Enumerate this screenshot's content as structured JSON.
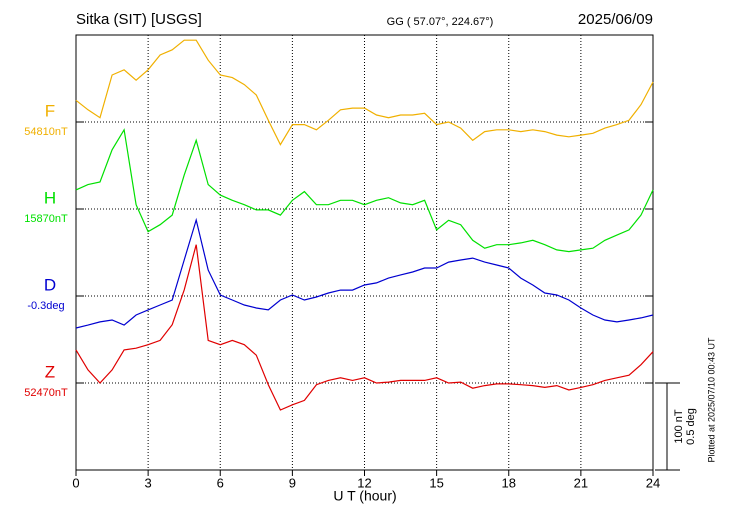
{
  "chart_data": {
    "type": "line",
    "title": "Sitka (SIT)  [USGS]",
    "subtitle": "GG ( 57.07°, 224.67°)",
    "date": "2025/06/09",
    "xlabel": "U T (hour)",
    "note": "Plotted at 2025/07/10 00:43 UT",
    "xlim": [
      0,
      24
    ],
    "xticks": [
      0,
      3,
      6,
      9,
      12,
      15,
      18,
      21,
      24
    ],
    "grid": true,
    "scale_bar": [
      {
        "value": 100,
        "label": "100 nT"
      },
      {
        "value": 0.5,
        "label": "0.5 deg"
      }
    ],
    "x": [
      0,
      0.5,
      1,
      1.5,
      2,
      2.5,
      3,
      3.5,
      4,
      4.5,
      5,
      5.5,
      6,
      6.5,
      7,
      7.5,
      8,
      8.5,
      9,
      9.5,
      10,
      10.5,
      11,
      11.5,
      12,
      12.5,
      13,
      13.5,
      14,
      14.5,
      15,
      15.5,
      16,
      16.5,
      17,
      17.5,
      18,
      18.5,
      19,
      19.5,
      20,
      20.5,
      21,
      21.5,
      22,
      22.5,
      23,
      23.5,
      24
    ],
    "series": [
      {
        "name": "F",
        "color": "#f0b000",
        "base": {
          "value": 54810,
          "label": "54810nT"
        },
        "values": [
          54835,
          54824,
          54815,
          54864,
          54870,
          54858,
          54870,
          54887,
          54893,
          54904,
          54904,
          54881,
          54864,
          54861,
          54853,
          54841,
          54812,
          54784,
          54807,
          54807,
          54801,
          54812,
          54824,
          54826,
          54826,
          54818,
          54815,
          54818,
          54818,
          54820,
          54807,
          54810,
          54803,
          54789,
          54799,
          54801,
          54801,
          54799,
          54801,
          54799,
          54795,
          54793,
          54795,
          54797,
          54803,
          54807,
          54812,
          54830,
          54856
        ]
      },
      {
        "name": "H",
        "color": "#00e000",
        "base": {
          "value": 15870,
          "label": "15870nT"
        },
        "values": [
          15892,
          15898,
          15901,
          15938,
          15961,
          15875,
          15844,
          15852,
          15863,
          15909,
          15949,
          15898,
          15886,
          15880,
          15875,
          15869,
          15869,
          15863,
          15880,
          15890,
          15875,
          15875,
          15880,
          15880,
          15875,
          15880,
          15883,
          15877,
          15875,
          15880,
          15846,
          15857,
          15852,
          15834,
          15825,
          15829,
          15829,
          15831,
          15834,
          15829,
          15823,
          15821,
          15823,
          15825,
          15834,
          15840,
          15846,
          15863,
          15892
        ]
      },
      {
        "name": "D",
        "color": "#0000d0",
        "axis": "y2",
        "base": {
          "value": -0.3,
          "label": "-0.3deg"
        },
        "values": [
          -0.484,
          -0.467,
          -0.449,
          -0.438,
          -0.467,
          -0.409,
          -0.38,
          -0.352,
          -0.323,
          -0.093,
          0.137,
          -0.151,
          -0.294,
          -0.323,
          -0.352,
          -0.369,
          -0.38,
          -0.323,
          -0.294,
          -0.323,
          -0.306,
          -0.283,
          -0.266,
          -0.266,
          -0.237,
          -0.225,
          -0.197,
          -0.179,
          -0.162,
          -0.139,
          -0.139,
          -0.105,
          -0.093,
          -0.082,
          -0.105,
          -0.122,
          -0.139,
          -0.197,
          -0.237,
          -0.283,
          -0.294,
          -0.323,
          -0.369,
          -0.409,
          -0.438,
          -0.449,
          -0.438,
          -0.426,
          -0.409
        ]
      },
      {
        "name": "Z",
        "color": "#e00000",
        "base": {
          "value": 52470,
          "label": "52470nT"
        },
        "values": [
          52508,
          52485,
          52470,
          52485,
          52508,
          52510,
          52514,
          52519,
          52537,
          52577,
          52629,
          52519,
          52514,
          52519,
          52514,
          52502,
          52468,
          52439,
          52445,
          52450,
          52468,
          52473,
          52476,
          52473,
          52476,
          52470,
          52471,
          52473,
          52473,
          52473,
          52476,
          52470,
          52471,
          52464,
          52467,
          52469,
          52469,
          52468,
          52467,
          52465,
          52467,
          52462,
          52465,
          52468,
          52473,
          52476,
          52479,
          52491,
          52506
        ]
      }
    ]
  }
}
